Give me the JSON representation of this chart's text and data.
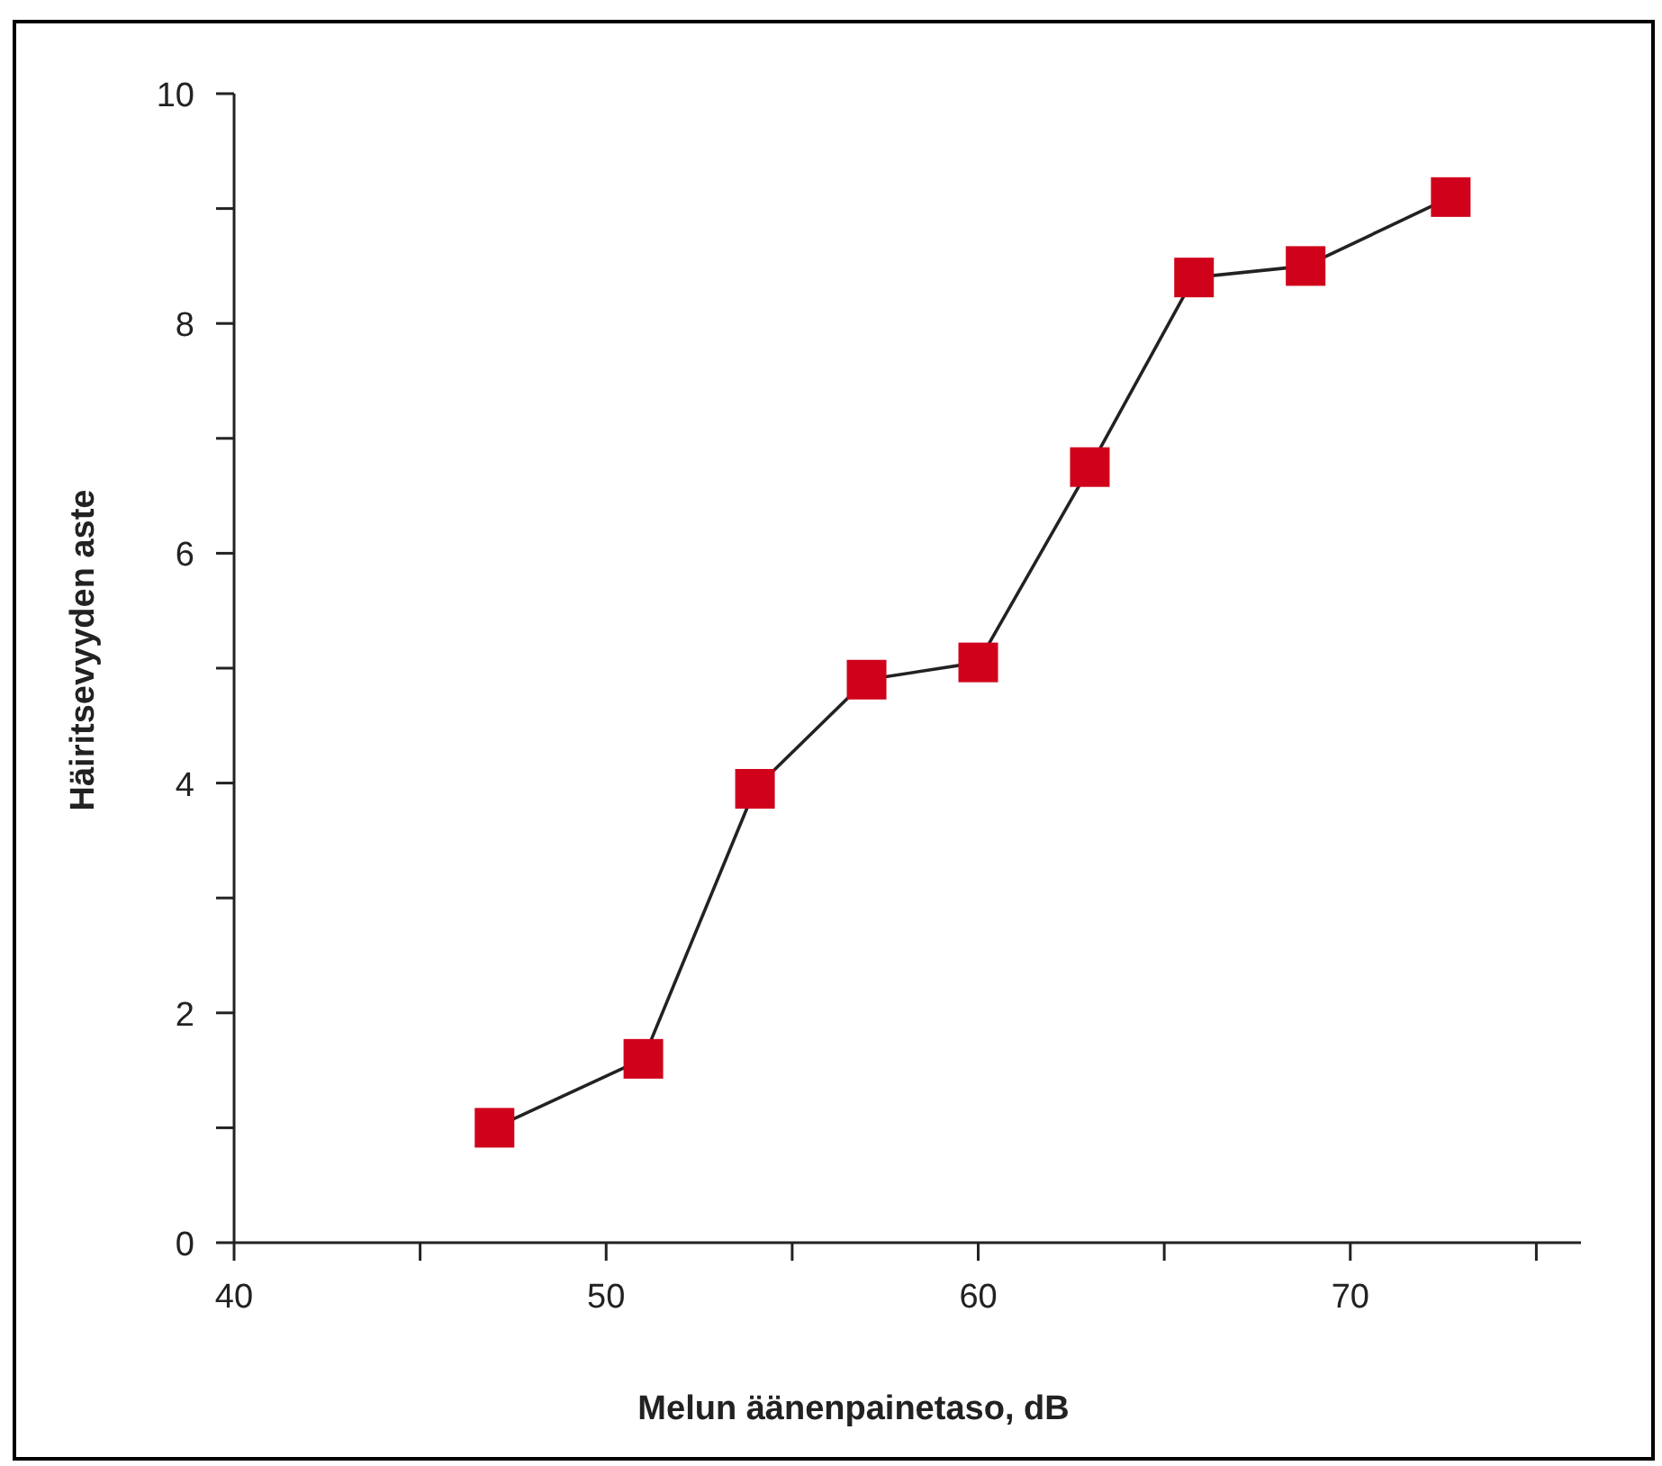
{
  "chart_data": {
    "type": "line",
    "xlabel": "Melun äänenpainetaso,  dB",
    "ylabel": "Häiritsevyyden aste",
    "x": [
      47,
      51,
      54,
      57,
      60,
      63,
      65.8,
      68.8,
      72.7
    ],
    "series": [
      {
        "color": "#d0021b",
        "values": [
          1.0,
          1.6,
          3.95,
          4.9,
          5.05,
          6.75,
          8.4,
          8.5,
          9.1
        ]
      }
    ],
    "xlim": [
      40,
      76.2
    ],
    "ylim": [
      0,
      10
    ],
    "xticks": [
      40,
      {
        "value": 45,
        "label": null
      },
      50,
      {
        "value": 55,
        "label": null
      },
      60,
      {
        "value": 65,
        "label": null
      },
      70,
      {
        "value": 75,
        "label": null
      }
    ],
    "yticks": [
      0,
      {
        "value": 1,
        "label": null
      },
      2,
      {
        "value": 3,
        "label": null
      },
      4,
      {
        "value": 5,
        "label": null
      },
      6,
      {
        "value": 7,
        "label": null
      },
      8,
      {
        "value": 9,
        "label": null
      },
      10
    ],
    "marker": "square",
    "line_style": "solid"
  }
}
